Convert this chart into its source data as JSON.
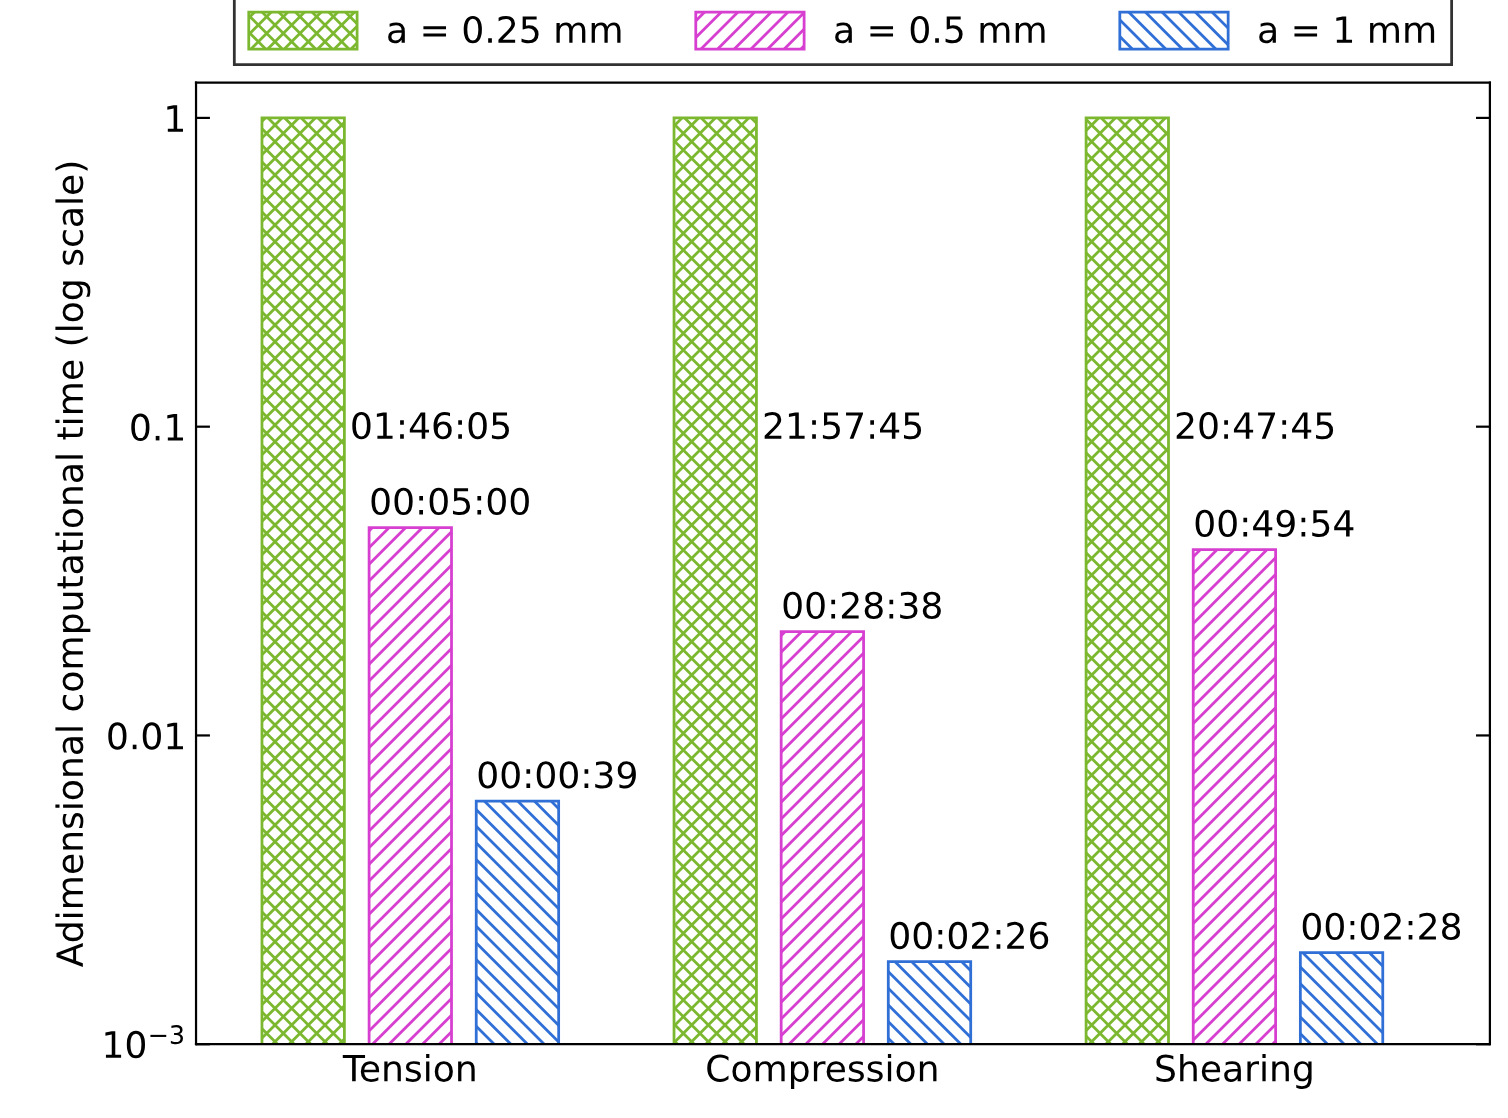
{
  "chart_data": {
    "type": "bar",
    "ylabel": "Adimensional computational time (log scale)",
    "categories": [
      "Tension",
      "Compression",
      "Shearing"
    ],
    "series": [
      {
        "name": "a = 0.25 mm",
        "color": "#7cb82f",
        "values": [
          1,
          1,
          1
        ]
      },
      {
        "name": "a = 0.5 mm",
        "color": "#d63fd0",
        "values": [
          0.0471,
          0.0217,
          0.04
        ]
      },
      {
        "name": "a = 1 mm",
        "color": "#2f6fd6",
        "values": [
          0.00613,
          0.00185,
          0.00198
        ]
      }
    ],
    "annotations": [
      "01:46:05",
      "21:57:45",
      "20:47:45",
      "00:05:00",
      "00:28:38",
      "00:49:54",
      "00:00:39",
      "00:02:26",
      "00:02:28"
    ],
    "log": "y",
    "ylim": [
      0.001,
      1.3
    ],
    "yticks": [
      {
        "value": 0.001,
        "label": "10$^{−3}$"
      },
      0.01,
      0.1,
      1
    ],
    "legend": "top",
    "grid": false
  }
}
